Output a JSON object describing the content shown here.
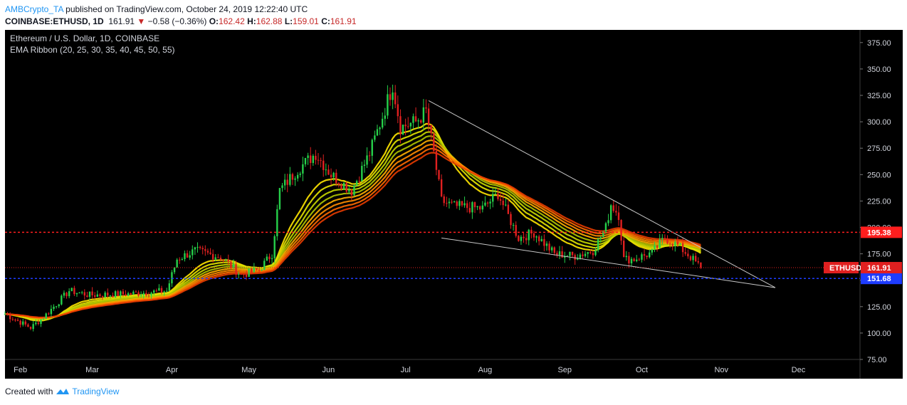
{
  "header": {
    "author": "AMBCrypto_TA",
    "published": "published on TradingView.com, October 24, 2019 12:22:40 UTC",
    "symbol": "COINBASE:ETHUSD, 1D",
    "last": "161.91",
    "change": "−0.58 (−0.36%)",
    "o_label": "O:",
    "o": "162.42",
    "h_label": "H:",
    "h": "162.88",
    "l_label": "L:",
    "l": "159.01",
    "c_label": "C:",
    "c": "161.91"
  },
  "legend": {
    "line1": "Ethereum / U.S. Dollar, 1D, COINBASE",
    "line2": "EMA Ribbon (20, 25, 30, 35, 40, 45, 50, 55)"
  },
  "footer": {
    "created_with": "Created with",
    "brand": "TradingView"
  },
  "colors": {
    "background": "#000000",
    "up": "#26d04a",
    "down": "#e02020",
    "level_red": "#ff1e1e",
    "level_blue": "#1e3cff",
    "trend": "#c8c8c8"
  },
  "chart_data": {
    "type": "candlestick",
    "title": "Ethereum / U.S. Dollar, 1D, COINBASE",
    "ylim": [
      75,
      387
    ],
    "y_ticks": [
      75,
      100,
      125,
      150,
      175,
      200,
      225,
      250,
      275,
      300,
      325,
      350,
      375
    ],
    "y_tick_labels": [
      "75.00",
      "100.00",
      "125.00",
      "150.00",
      "175.00",
      "200.00",
      "225.00",
      "250.00",
      "275.00",
      "300.00",
      "325.00",
      "350.00",
      "375.00"
    ],
    "x_start": "2019-01-26",
    "x_end": "2019-12-25",
    "x_ticks": [
      {
        "label": "Feb",
        "date": "2019-02-01"
      },
      {
        "label": "Mar",
        "date": "2019-03-01"
      },
      {
        "label": "Apr",
        "date": "2019-04-01"
      },
      {
        "label": "May",
        "date": "2019-05-01"
      },
      {
        "label": "Jun",
        "date": "2019-06-01"
      },
      {
        "label": "Jul",
        "date": "2019-07-01"
      },
      {
        "label": "Aug",
        "date": "2019-08-01"
      },
      {
        "label": "Sep",
        "date": "2019-09-01"
      },
      {
        "label": "Oct",
        "date": "2019-10-01"
      },
      {
        "label": "Nov",
        "date": "2019-11-01"
      },
      {
        "label": "Dec",
        "date": "2019-12-01"
      }
    ],
    "price_path": [
      [
        "2019-01-26",
        118
      ],
      [
        "2019-02-05",
        105
      ],
      [
        "2019-02-10",
        115
      ],
      [
        "2019-02-20",
        140
      ],
      [
        "2019-02-28",
        136
      ],
      [
        "2019-03-15",
        137
      ],
      [
        "2019-03-30",
        140
      ],
      [
        "2019-04-03",
        170
      ],
      [
        "2019-04-10",
        178
      ],
      [
        "2019-04-20",
        172
      ],
      [
        "2019-04-28",
        155
      ],
      [
        "2019-05-05",
        160
      ],
      [
        "2019-05-10",
        175
      ],
      [
        "2019-05-13",
        235
      ],
      [
        "2019-05-20",
        255
      ],
      [
        "2019-05-27",
        270
      ],
      [
        "2019-06-02",
        250
      ],
      [
        "2019-06-10",
        235
      ],
      [
        "2019-06-17",
        270
      ],
      [
        "2019-06-22",
        305
      ],
      [
        "2019-06-26",
        335
      ],
      [
        "2019-06-29",
        295
      ],
      [
        "2019-07-05",
        300
      ],
      [
        "2019-07-09",
        310
      ],
      [
        "2019-07-12",
        270
      ],
      [
        "2019-07-15",
        225
      ],
      [
        "2019-07-20",
        220
      ],
      [
        "2019-07-31",
        218
      ],
      [
        "2019-08-06",
        232
      ],
      [
        "2019-08-14",
        190
      ],
      [
        "2019-08-20",
        195
      ],
      [
        "2019-08-28",
        175
      ],
      [
        "2019-09-05",
        173
      ],
      [
        "2019-09-12",
        178
      ],
      [
        "2019-09-17",
        200
      ],
      [
        "2019-09-19",
        222
      ],
      [
        "2019-09-22",
        212
      ],
      [
        "2019-09-24",
        170
      ],
      [
        "2019-09-28",
        170
      ],
      [
        "2019-10-05",
        176
      ],
      [
        "2019-10-10",
        190
      ],
      [
        "2019-10-15",
        183
      ],
      [
        "2019-10-20",
        172
      ],
      [
        "2019-10-24",
        161.91
      ]
    ],
    "ema_ribbon": {
      "periods": [
        20,
        25,
        30,
        35,
        40,
        45,
        50,
        55
      ],
      "colors": [
        "#ffe600",
        "#e6e600",
        "#c8d800",
        "#b0c400",
        "#ffb000",
        "#ff8c00",
        "#ff6a00",
        "#e83c00"
      ]
    },
    "levels": [
      {
        "label": "195.38",
        "value": 195.38,
        "color": "#ff1e1e",
        "style": "dashed"
      },
      {
        "label": "151.68",
        "value": 151.68,
        "color": "#1e3cff",
        "style": "dashed"
      }
    ],
    "last_price": {
      "symbol": "ETHUSD",
      "value": 161.91
    },
    "trendlines": [
      {
        "from": [
          "2019-07-10",
          320
        ],
        "to": [
          "2019-11-22",
          143
        ]
      },
      {
        "from": [
          "2019-07-15",
          190
        ],
        "to": [
          "2019-11-22",
          143
        ]
      }
    ]
  }
}
